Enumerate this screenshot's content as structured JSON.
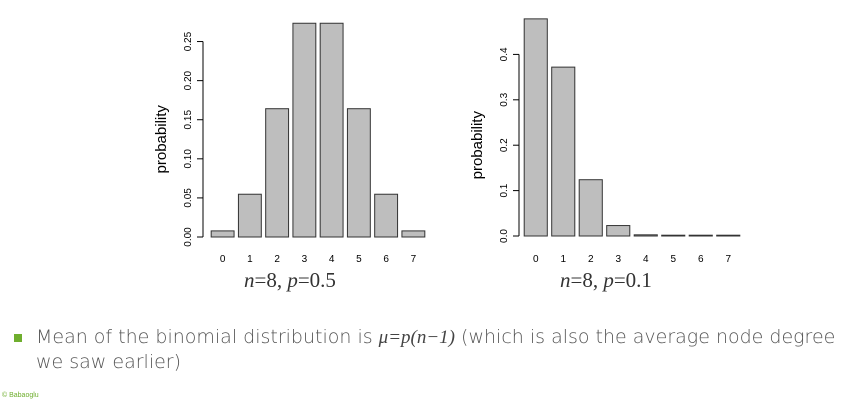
{
  "chart_data": [
    {
      "type": "bar",
      "categories": [
        "0",
        "1",
        "2",
        "3",
        "4",
        "5",
        "6",
        "7"
      ],
      "values": [
        0.0078,
        0.0547,
        0.1641,
        0.2734,
        0.2734,
        0.1641,
        0.0547,
        0.0078
      ],
      "ylabel": "probability",
      "yticks": [
        "0.00",
        "0.05",
        "0.10",
        "0.15",
        "0.20",
        "0.25"
      ],
      "ylim": [
        0,
        0.275
      ],
      "caption": {
        "n_label": "n",
        "n_value": "=8, ",
        "p_label": "p",
        "p_value": "=0.5"
      },
      "bar_color": "#bebebe"
    },
    {
      "type": "bar",
      "categories": [
        "0",
        "1",
        "2",
        "3",
        "4",
        "5",
        "6",
        "7"
      ],
      "values": [
        0.4783,
        0.372,
        0.124,
        0.023,
        0.0026,
        0.0002,
        0.0,
        0.0
      ],
      "ylabel": "probability",
      "yticks": [
        "0.0",
        "0.1",
        "0.2",
        "0.3",
        "0.4"
      ],
      "ylim": [
        0,
        0.478
      ],
      "caption": {
        "n_label": "n",
        "n_value": "=8, ",
        "p_label": "p",
        "p_value": "=0.1"
      },
      "bar_color": "#bebebe"
    }
  ],
  "bullet": {
    "text_before": "Mean of the binomial distribution is ",
    "math": "μ=p(n−1)",
    "text_after": " (which is also the average node degree we saw earlier)"
  },
  "copyright": "© Babaoglu",
  "colors": {
    "accent": "#6fae2e",
    "bar": "#bebebe"
  }
}
